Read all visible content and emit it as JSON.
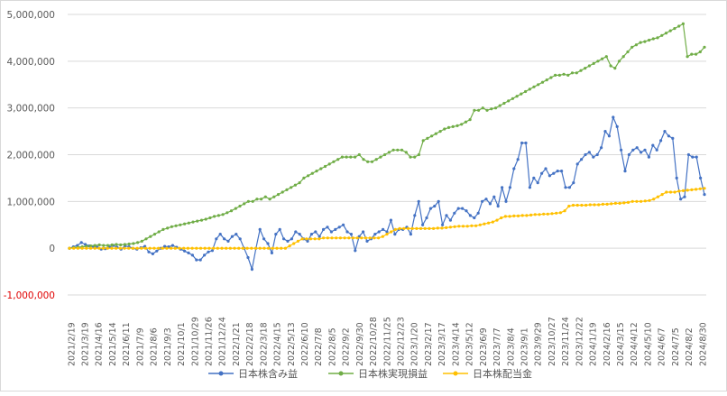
{
  "chart_data": {
    "type": "line",
    "title": "",
    "xlabel": "",
    "ylabel": "",
    "ylim": [
      -1000000,
      5000000
    ],
    "grid": true,
    "legend_position": "bottom",
    "yticks": [
      {
        "value": 5000000,
        "label": "5,000,000",
        "color": "#595959"
      },
      {
        "value": 4000000,
        "label": "4,000,000",
        "color": "#595959"
      },
      {
        "value": 3000000,
        "label": "3,000,000",
        "color": "#595959"
      },
      {
        "value": 2000000,
        "label": "2,000,000",
        "color": "#595959"
      },
      {
        "value": 1000000,
        "label": "1,000,000",
        "color": "#595959"
      },
      {
        "value": 0,
        "label": "0",
        "color": "#595959"
      },
      {
        "value": -1000000,
        "label": "-1,000,000",
        "color": "#e00000"
      }
    ],
    "x_tick_labels": [
      "2021/2/19",
      "2021/3/19",
      "2021/4/16",
      "2021/5/14",
      "2021/6/11",
      "2021/7/9",
      "2021/8/6",
      "2021/9/3",
      "2021/10/1",
      "2021/10/29",
      "2021/11/26",
      "2021/12/24",
      "2022/1/21",
      "2022/2/18",
      "2022/3/18",
      "2022/4/15",
      "2022/5/13",
      "2022/6/10",
      "2022/7/8",
      "2022/8/5",
      "2022/9/2",
      "2022/9/30",
      "2022/10/28",
      "2022/11/25",
      "2022/12/23",
      "2023/1/20",
      "2023/2/17",
      "2023/3/17",
      "2023/4/14",
      "2023/5/12",
      "2023/6/9",
      "2023/7/7",
      "2023/8/4",
      "2023/9/1",
      "2023/9/29",
      "2023/10/27",
      "2023/11/24",
      "2023/12/22",
      "2024/1/19",
      "2024/2/16",
      "2024/3/15",
      "2024/4/12",
      "2024/5/10",
      "2024/6/7",
      "2024/7/5",
      "2024/8/2",
      "2024/8/30"
    ],
    "series": [
      {
        "name": "日本株含み益",
        "color": "#4472c4",
        "values": [
          0,
          30000,
          60000,
          120000,
          80000,
          50000,
          40000,
          20000,
          -20000,
          -10000,
          20000,
          60000,
          20000,
          -20000,
          50000,
          30000,
          0,
          -20000,
          10000,
          40000,
          -80000,
          -120000,
          -60000,
          0,
          40000,
          30000,
          60000,
          20000,
          -20000,
          -60000,
          -100000,
          -150000,
          -250000,
          -250000,
          -150000,
          -80000,
          -50000,
          200000,
          300000,
          200000,
          150000,
          250000,
          300000,
          200000,
          0,
          -200000,
          -450000,
          0,
          400000,
          200000,
          100000,
          -100000,
          300000,
          400000,
          200000,
          150000,
          200000,
          350000,
          300000,
          200000,
          150000,
          300000,
          350000,
          250000,
          400000,
          450000,
          350000,
          400000,
          450000,
          500000,
          350000,
          300000,
          -50000,
          250000,
          350000,
          150000,
          200000,
          300000,
          350000,
          400000,
          350000,
          600000,
          300000,
          400000,
          400000,
          450000,
          300000,
          700000,
          1000000,
          500000,
          650000,
          850000,
          900000,
          1000000,
          500000,
          700000,
          600000,
          750000,
          850000,
          850000,
          800000,
          700000,
          650000,
          750000,
          1000000,
          1050000,
          950000,
          1100000,
          900000,
          1300000,
          1000000,
          1300000,
          1700000,
          1900000,
          2250000,
          2250000,
          1300000,
          1500000,
          1400000,
          1600000,
          1700000,
          1550000,
          1600000,
          1650000,
          1650000,
          1300000,
          1300000,
          1400000,
          1800000,
          1900000,
          2000000,
          2050000,
          1950000,
          2000000,
          2150000,
          2500000,
          2400000,
          2800000,
          2600000,
          2100000,
          1650000,
          2000000,
          2100000,
          2150000,
          2050000,
          2100000,
          1950000,
          2200000,
          2100000,
          2300000,
          2500000,
          2400000,
          2350000,
          1500000,
          1050000,
          1100000,
          2000000,
          1950000,
          1950000,
          1500000,
          1150000
        ]
      },
      {
        "name": "日本株実現損益",
        "color": "#70ad47",
        "values": [
          0,
          10000,
          20000,
          30000,
          40000,
          50000,
          60000,
          70000,
          60000,
          60000,
          70000,
          80000,
          70000,
          80000,
          90000,
          100000,
          120000,
          150000,
          200000,
          250000,
          300000,
          350000,
          400000,
          430000,
          460000,
          480000,
          500000,
          520000,
          540000,
          560000,
          580000,
          600000,
          620000,
          650000,
          680000,
          700000,
          720000,
          760000,
          800000,
          850000,
          900000,
          950000,
          1000000,
          1000000,
          1050000,
          1050000,
          1100000,
          1050000,
          1100000,
          1150000,
          1200000,
          1250000,
          1300000,
          1350000,
          1400000,
          1500000,
          1550000,
          1600000,
          1650000,
          1700000,
          1750000,
          1800000,
          1850000,
          1900000,
          1950000,
          1950000,
          1950000,
          1950000,
          2000000,
          1900000,
          1850000,
          1850000,
          1900000,
          1950000,
          2000000,
          2050000,
          2100000,
          2100000,
          2100000,
          2050000,
          1950000,
          1950000,
          2000000,
          2300000,
          2350000,
          2400000,
          2450000,
          2500000,
          2550000,
          2580000,
          2600000,
          2620000,
          2650000,
          2700000,
          2750000,
          2950000,
          2950000,
          3000000,
          2950000,
          2980000,
          3000000,
          3050000,
          3100000,
          3150000,
          3200000,
          3250000,
          3300000,
          3350000,
          3400000,
          3450000,
          3500000,
          3550000,
          3600000,
          3650000,
          3700000,
          3700000,
          3720000,
          3700000,
          3750000,
          3750000,
          3800000,
          3850000,
          3900000,
          3950000,
          4000000,
          4050000,
          4100000,
          3900000,
          3850000,
          4000000,
          4100000,
          4200000,
          4300000,
          4350000,
          4400000,
          4420000,
          4450000,
          4480000,
          4500000,
          4550000,
          4600000,
          4650000,
          4700000,
          4750000,
          4800000,
          4100000,
          4150000,
          4150000,
          4200000,
          4300000
        ]
      },
      {
        "name": "日本株配当金",
        "color": "#ffc000",
        "values": [
          0,
          0,
          0,
          0,
          0,
          0,
          0,
          0,
          0,
          0,
          0,
          0,
          0,
          0,
          0,
          0,
          0,
          0,
          0,
          0,
          0,
          0,
          0,
          0,
          0,
          0,
          0,
          0,
          0,
          0,
          0,
          0,
          0,
          0,
          0,
          0,
          0,
          0,
          0,
          0,
          0,
          0,
          0,
          0,
          0,
          0,
          0,
          0,
          0,
          0,
          0,
          0,
          50000,
          100000,
          150000,
          200000,
          200000,
          200000,
          200000,
          200000,
          220000,
          220000,
          220000,
          220000,
          220000,
          220000,
          220000,
          220000,
          220000,
          220000,
          220000,
          220000,
          220000,
          220000,
          250000,
          300000,
          350000,
          400000,
          420000,
          420000,
          420000,
          420000,
          420000,
          420000,
          420000,
          420000,
          420000,
          430000,
          430000,
          440000,
          450000,
          460000,
          470000,
          470000,
          470000,
          480000,
          480000,
          500000,
          520000,
          540000,
          560000,
          600000,
          650000,
          680000,
          680000,
          690000,
          690000,
          700000,
          700000,
          710000,
          720000,
          720000,
          730000,
          730000,
          740000,
          750000,
          760000,
          800000,
          900000,
          920000,
          920000,
          920000,
          920000,
          930000,
          930000,
          930000,
          940000,
          940000,
          950000,
          960000,
          960000,
          970000,
          980000,
          1000000,
          1000000,
          1000000,
          1010000,
          1020000,
          1050000,
          1100000,
          1150000,
          1200000,
          1200000,
          1200000,
          1220000,
          1230000,
          1240000,
          1250000,
          1260000,
          1270000,
          1280000
        ]
      }
    ]
  }
}
